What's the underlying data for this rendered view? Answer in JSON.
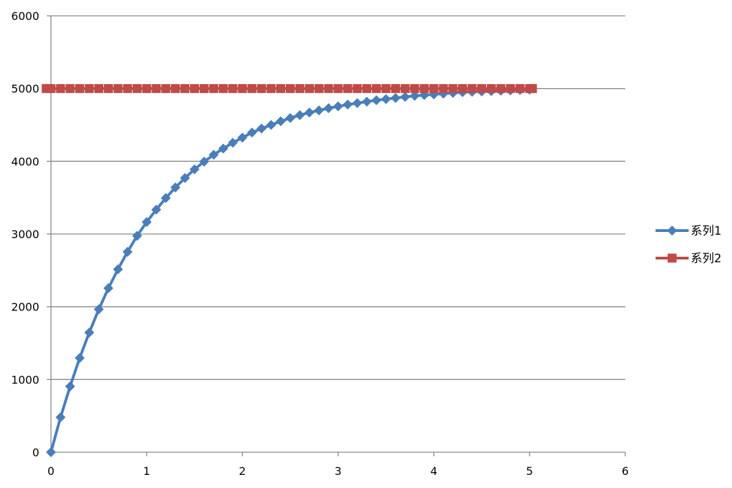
{
  "chart_data": {
    "type": "scatter",
    "xlim": [
      0,
      6
    ],
    "ylim": [
      0,
      6000
    ],
    "x_ticks": [
      0,
      1,
      2,
      3,
      4,
      5,
      6
    ],
    "y_ticks": [
      0,
      1000,
      2000,
      3000,
      4000,
      5000,
      6000
    ],
    "x_tick_labels": [
      "0",
      "1",
      "2",
      "3",
      "4",
      "5",
      "6"
    ],
    "y_tick_labels": [
      "0",
      "1000",
      "2000",
      "3000",
      "4000",
      "5000",
      "6000"
    ],
    "grid": "horizontal",
    "legend": "right",
    "series": [
      {
        "name": "系列1",
        "color": "#4A7EBB",
        "marker": "diamond",
        "x": [
          0,
          0.1,
          0.2,
          0.3,
          0.4,
          0.5,
          0.6,
          0.7,
          0.8,
          0.9,
          1.0,
          1.1,
          1.2,
          1.3,
          1.4,
          1.5,
          1.6,
          1.7,
          1.8,
          1.9,
          2.0,
          2.1,
          2.2,
          2.3,
          2.4,
          2.5,
          2.6,
          2.7,
          2.8,
          2.9,
          3.0,
          3.1,
          3.2,
          3.3,
          3.4,
          3.5,
          3.6,
          3.7,
          3.8,
          3.9,
          4.0,
          4.1,
          4.2,
          4.3,
          4.4,
          4.5,
          4.6,
          4.7,
          4.8,
          4.9,
          5.0
        ],
        "y": [
          0,
          480,
          905,
          1295,
          1645,
          1965,
          2255,
          2515,
          2755,
          2975,
          3165,
          3335,
          3495,
          3640,
          3770,
          3890,
          3995,
          4090,
          4175,
          4255,
          4325,
          4395,
          4450,
          4500,
          4550,
          4595,
          4635,
          4670,
          4700,
          4730,
          4755,
          4780,
          4800,
          4820,
          4840,
          4855,
          4870,
          4885,
          4900,
          4910,
          4920,
          4930,
          4940,
          4950,
          4955,
          4960,
          4965,
          4970,
          4975,
          4980,
          4985
        ]
      },
      {
        "name": "系列2",
        "color": "#BE4B48",
        "marker": "square",
        "x": [
          -0.05,
          0,
          0.1,
          0.2,
          0.3,
          0.4,
          0.5,
          0.6,
          0.7,
          0.8,
          0.9,
          1.0,
          1.1,
          1.2,
          1.3,
          1.4,
          1.5,
          1.6,
          1.7,
          1.8,
          1.9,
          2.0,
          2.1,
          2.2,
          2.3,
          2.4,
          2.5,
          2.6,
          2.7,
          2.8,
          2.9,
          3.0,
          3.1,
          3.2,
          3.3,
          3.4,
          3.5,
          3.6,
          3.7,
          3.8,
          3.9,
          4.0,
          4.1,
          4.2,
          4.3,
          4.4,
          4.5,
          4.6,
          4.7,
          4.8,
          4.9,
          5.0,
          5.03
        ],
        "y": [
          5000,
          5000,
          5000,
          5000,
          5000,
          5000,
          5000,
          5000,
          5000,
          5000,
          5000,
          5000,
          5000,
          5000,
          5000,
          5000,
          5000,
          5000,
          5000,
          5000,
          5000,
          5000,
          5000,
          5000,
          5000,
          5000,
          5000,
          5000,
          5000,
          5000,
          5000,
          5000,
          5000,
          5000,
          5000,
          5000,
          5000,
          5000,
          5000,
          5000,
          5000,
          5000,
          5000,
          5000,
          5000,
          5000,
          5000,
          5000,
          5000,
          5000,
          5000,
          5000,
          5000
        ]
      }
    ]
  }
}
